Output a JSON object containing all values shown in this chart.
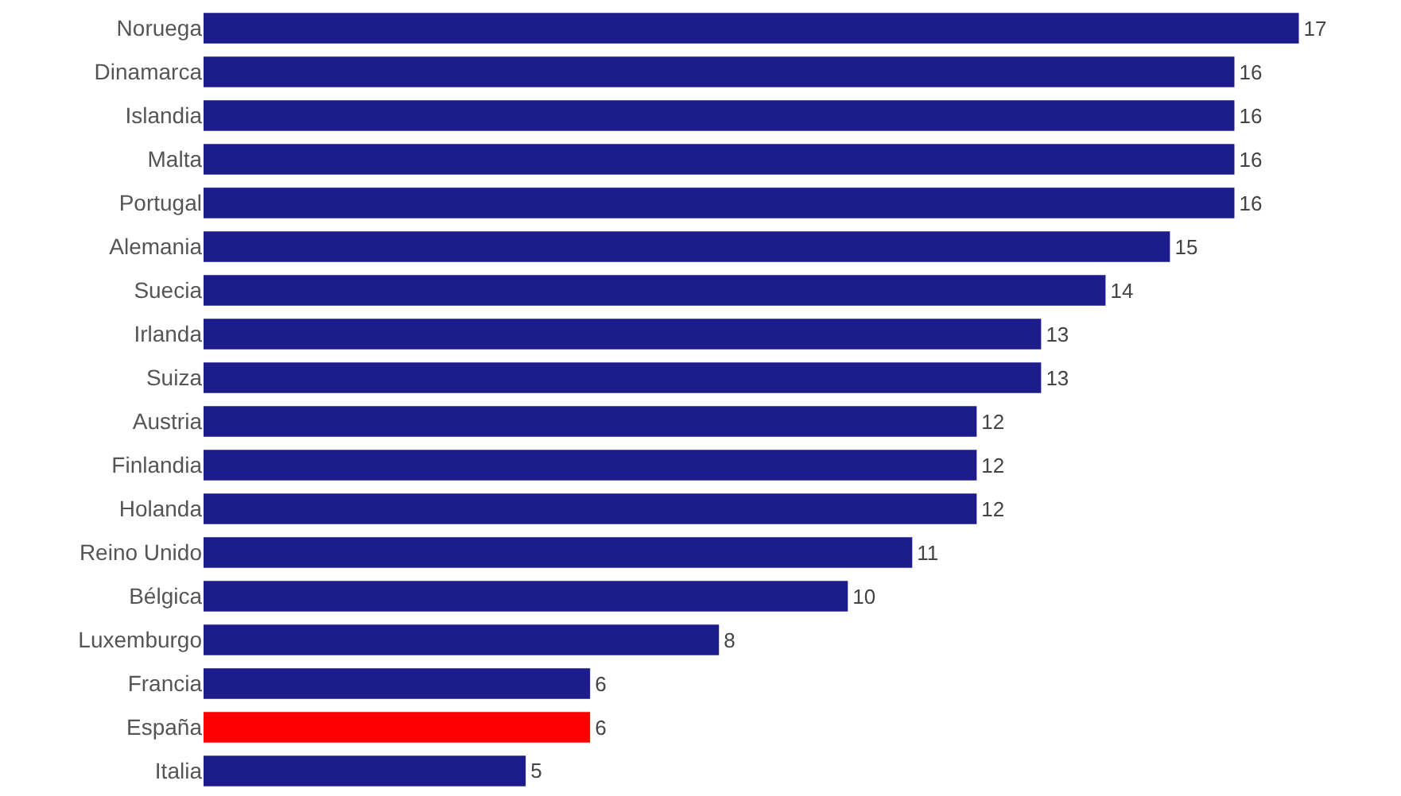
{
  "chart_data": {
    "type": "bar",
    "orientation": "horizontal",
    "categories": [
      "Noruega",
      "Dinamarca",
      "Islandia",
      "Malta",
      "Portugal",
      "Alemania",
      "Suecia",
      "Irlanda",
      "Suiza",
      "Austria",
      "Finlandia",
      "Holanda",
      "Reino Unido",
      "Bélgica",
      "Luxemburgo",
      "Francia",
      "España",
      "Italia"
    ],
    "values": [
      17,
      16,
      16,
      16,
      16,
      15,
      14,
      13,
      13,
      12,
      12,
      12,
      11,
      10,
      8,
      6,
      6,
      5
    ],
    "colors": [
      "#1c1c8c",
      "#1c1c8c",
      "#1c1c8c",
      "#1c1c8c",
      "#1c1c8c",
      "#1c1c8c",
      "#1c1c8c",
      "#1c1c8c",
      "#1c1c8c",
      "#1c1c8c",
      "#1c1c8c",
      "#1c1c8c",
      "#1c1c8c",
      "#1c1c8c",
      "#1c1c8c",
      "#1c1c8c",
      "#ff0000",
      "#1c1c8c"
    ],
    "data_labels": true
  }
}
